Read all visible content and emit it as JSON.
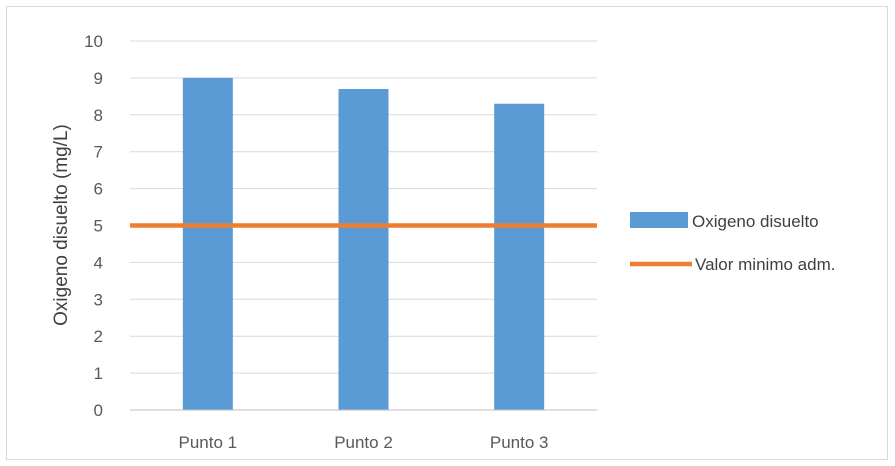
{
  "chart_data": {
    "type": "bar",
    "title": "",
    "xlabel": "",
    "ylabel": "Oxigeno disuelto (mg/L)",
    "categories": [
      "Punto 1",
      "Punto 2",
      "Punto 3"
    ],
    "ylim": [
      0,
      10
    ],
    "yticks": [
      0,
      1,
      2,
      3,
      4,
      5,
      6,
      7,
      8,
      9,
      10
    ],
    "grid": true,
    "legend_position": "right",
    "series": [
      {
        "name": "Oxigeno disuelto",
        "type": "bar",
        "values": [
          9.0,
          8.7,
          8.3
        ],
        "color": "#5b9bd5"
      },
      {
        "name": "Valor minimo adm.",
        "type": "line",
        "values": [
          5,
          5,
          5
        ],
        "color": "#ed7d31"
      }
    ]
  }
}
